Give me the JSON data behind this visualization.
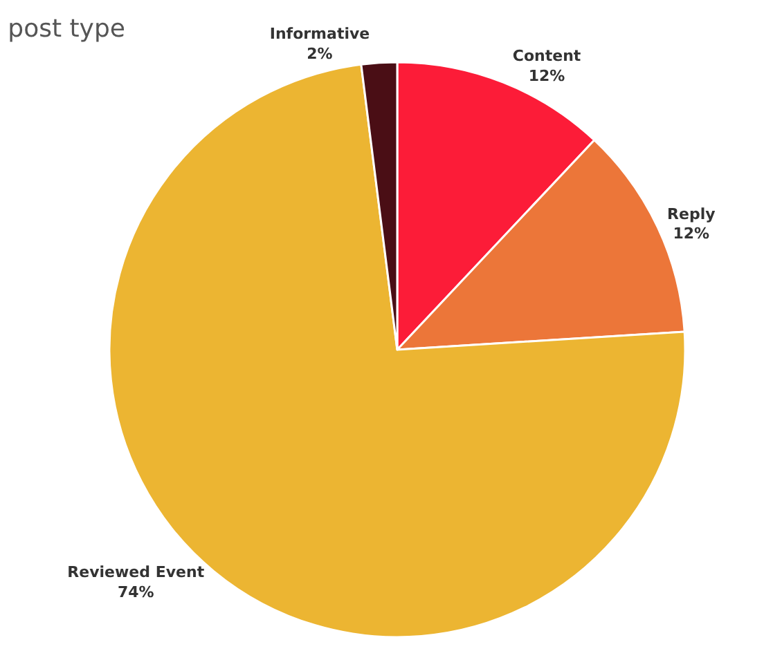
{
  "chart_data": {
    "type": "pie",
    "title": "post type",
    "categories": [
      "Content",
      "Reply",
      "Reviewed Event",
      "Informative"
    ],
    "values": [
      12,
      12,
      74,
      2
    ],
    "colors": [
      "#fc1c38",
      "#ec7639",
      "#ecb532",
      "#4a0e15"
    ],
    "value_labels": [
      "12%",
      "12%",
      "74%",
      "2%"
    ],
    "legend": false
  }
}
